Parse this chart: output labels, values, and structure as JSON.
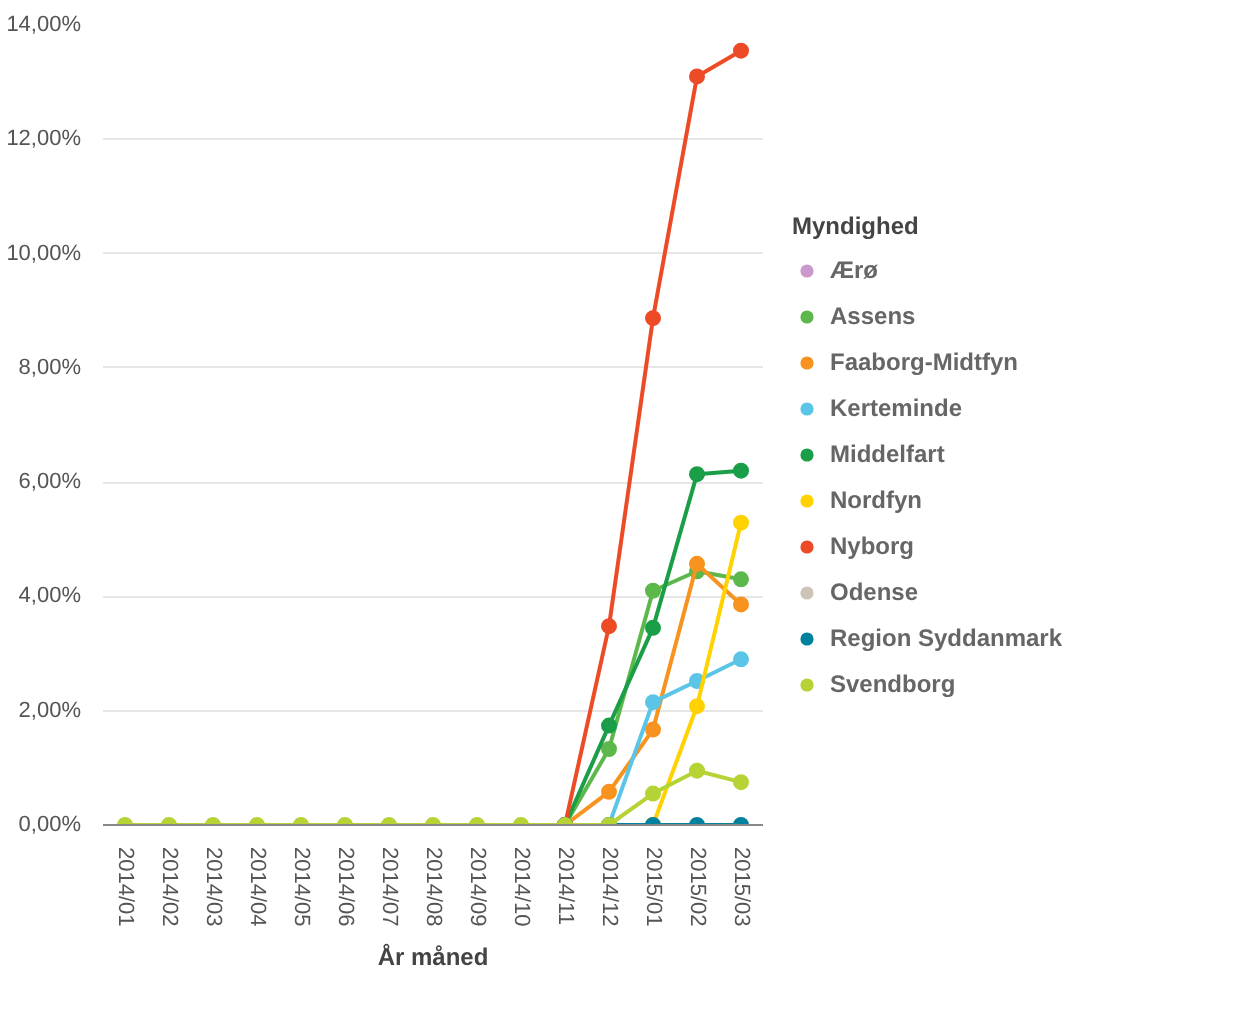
{
  "chart_data": {
    "type": "line",
    "xlabel": "År måned",
    "legend_title": "Myndighed",
    "legend": "right",
    "grid": "y",
    "marker": "circle",
    "line_style": "solid",
    "categories": [
      "2014/01",
      "2014/02",
      "2014/03",
      "2014/04",
      "2014/05",
      "2014/06",
      "2014/07",
      "2014/08",
      "2014/09",
      "2014/10",
      "2014/11",
      "2014/12",
      "2015/01",
      "2015/02",
      "2015/03"
    ],
    "ylim": [
      0,
      14
    ],
    "yticks": [
      {
        "value": 0,
        "label": "0,00%"
      },
      {
        "value": 2,
        "label": "2,00%"
      },
      {
        "value": 4,
        "label": "4,00%"
      },
      {
        "value": 6,
        "label": "6,00%"
      },
      {
        "value": 8,
        "label": "8,00%"
      },
      {
        "value": 10,
        "label": "10,00%"
      },
      {
        "value": 12,
        "label": "12,00%"
      },
      {
        "value": 14,
        "label": "14,00%"
      }
    ],
    "series": [
      {
        "name": "Ærø",
        "color": "#cc99cc",
        "values": [
          null,
          null,
          null,
          null,
          null,
          null,
          null,
          null,
          null,
          null,
          null,
          null,
          null,
          null,
          null
        ]
      },
      {
        "name": "Assens",
        "color": "#5cb84a",
        "values": [
          null,
          null,
          null,
          null,
          null,
          null,
          null,
          null,
          null,
          null,
          0,
          1.33,
          4.1,
          4.44,
          4.3
        ]
      },
      {
        "name": "Faaborg-Midtfyn",
        "color": "#f7931e",
        "values": [
          null,
          null,
          null,
          null,
          null,
          null,
          null,
          null,
          null,
          null,
          0,
          0.58,
          1.67,
          4.57,
          3.86
        ]
      },
      {
        "name": "Kerteminde",
        "color": "#5bc5e8",
        "values": [
          null,
          null,
          null,
          null,
          null,
          null,
          null,
          null,
          null,
          null,
          null,
          0,
          2.15,
          2.52,
          2.9
        ]
      },
      {
        "name": "Middelfart",
        "color": "#1a9e48",
        "values": [
          null,
          null,
          null,
          null,
          null,
          null,
          null,
          null,
          null,
          null,
          0,
          1.74,
          3.45,
          6.14,
          6.2
        ]
      },
      {
        "name": "Nordfyn",
        "color": "#ffd200",
        "values": [
          null,
          null,
          null,
          null,
          null,
          null,
          null,
          null,
          null,
          null,
          null,
          null,
          0,
          2.08,
          5.29
        ]
      },
      {
        "name": "Nyborg",
        "color": "#ec4b26",
        "values": [
          null,
          null,
          null,
          null,
          null,
          null,
          null,
          null,
          null,
          null,
          0,
          3.48,
          8.87,
          13.1,
          13.55
        ]
      },
      {
        "name": "Odense",
        "color": "#cdc4b8",
        "values": [
          null,
          null,
          null,
          null,
          null,
          null,
          null,
          null,
          null,
          null,
          null,
          null,
          null,
          null,
          null
        ]
      },
      {
        "name": "Region Syddanmark",
        "color": "#00819e",
        "values": [
          null,
          null,
          null,
          null,
          null,
          null,
          null,
          null,
          null,
          null,
          0,
          0,
          0,
          0,
          0
        ]
      },
      {
        "name": "Svendborg",
        "color": "#b5d334",
        "values": [
          0,
          0,
          0,
          0,
          0,
          0,
          0,
          0,
          0,
          0,
          0,
          0,
          0.55,
          0.95,
          0.75
        ]
      }
    ]
  }
}
